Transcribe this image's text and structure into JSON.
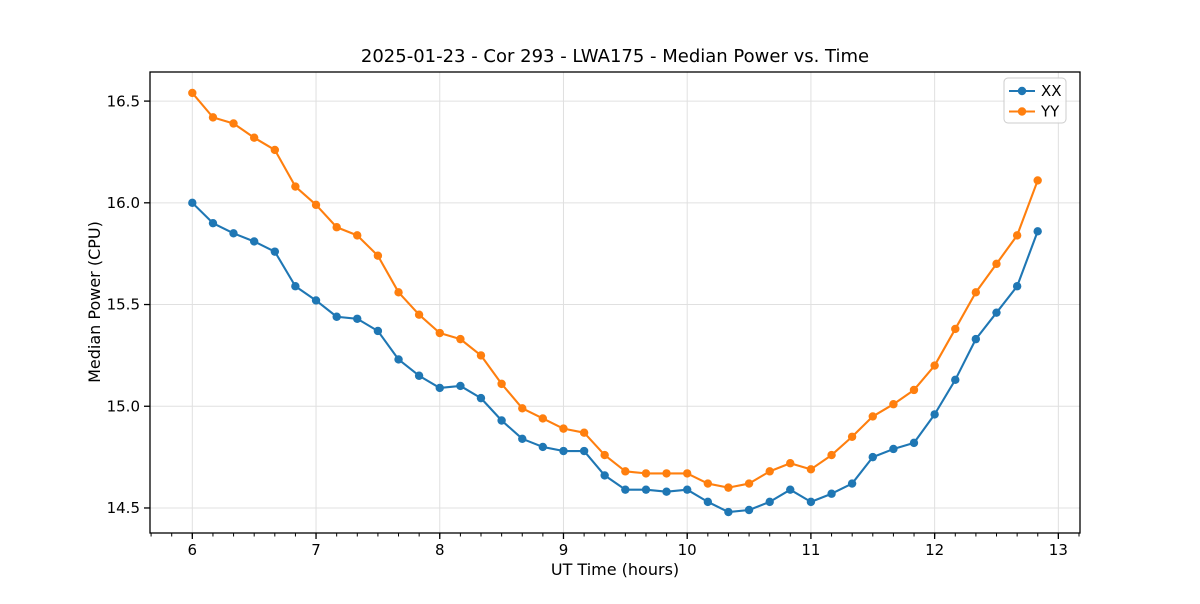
{
  "chart_data": {
    "type": "line",
    "title": "2025-01-23 - Cor 293 - LWA175 - Median Power vs. Time",
    "xlabel": "UT Time (hours)",
    "ylabel": "Median Power (CPU)",
    "xlim": [
      5.658,
      13.175
    ],
    "ylim": [
      14.377,
      16.643
    ],
    "x_major_ticks": [
      6,
      7,
      8,
      9,
      10,
      11,
      12,
      13
    ],
    "y_major_ticks": [
      14.5,
      15.0,
      15.5,
      16.0,
      16.5
    ],
    "x_minor_step": 0.16667,
    "grid": true,
    "grid_color": "#e0e0e0",
    "spine_color": "#000000",
    "background": "#ffffff",
    "legend_position": "upper right",
    "legend_border_color": "#cccccc",
    "x": [
      6.0,
      6.167,
      6.333,
      6.5,
      6.667,
      6.833,
      7.0,
      7.167,
      7.333,
      7.5,
      7.667,
      7.833,
      8.0,
      8.167,
      8.333,
      8.5,
      8.667,
      8.833,
      9.0,
      9.167,
      9.333,
      9.5,
      9.667,
      9.833,
      10.0,
      10.167,
      10.333,
      10.5,
      10.667,
      10.833,
      11.0,
      11.167,
      11.333,
      11.5,
      11.667,
      11.833,
      12.0,
      12.167,
      12.333,
      12.5,
      12.667,
      12.833
    ],
    "series": [
      {
        "name": "XX",
        "color": "#1f77b4",
        "values": [
          16.0,
          15.9,
          15.85,
          15.81,
          15.76,
          15.59,
          15.52,
          15.44,
          15.43,
          15.37,
          15.23,
          15.15,
          15.09,
          15.1,
          15.04,
          14.93,
          14.84,
          14.8,
          14.78,
          14.78,
          14.66,
          14.59,
          14.59,
          14.58,
          14.59,
          14.53,
          14.48,
          14.49,
          14.53,
          14.59,
          14.53,
          14.57,
          14.62,
          14.75,
          14.79,
          14.82,
          14.96,
          15.13,
          15.33,
          15.46,
          15.59,
          15.86
        ]
      },
      {
        "name": "YY",
        "color": "#ff7f0e",
        "values": [
          16.54,
          16.42,
          16.39,
          16.32,
          16.26,
          16.08,
          15.99,
          15.88,
          15.84,
          15.74,
          15.56,
          15.45,
          15.36,
          15.33,
          15.25,
          15.11,
          14.99,
          14.94,
          14.89,
          14.87,
          14.76,
          14.68,
          14.67,
          14.67,
          14.67,
          14.62,
          14.6,
          14.62,
          14.68,
          14.72,
          14.69,
          14.76,
          14.85,
          14.95,
          15.01,
          15.08,
          15.2,
          15.38,
          15.56,
          15.7,
          15.84,
          16.11
        ]
      }
    ]
  }
}
